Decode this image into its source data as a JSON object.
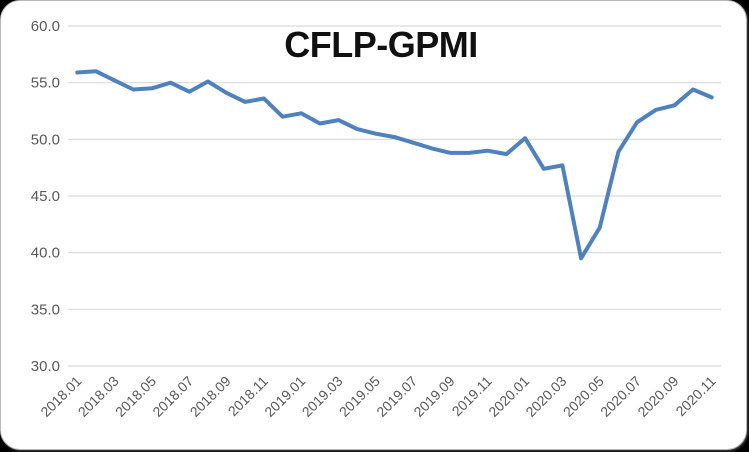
{
  "chart_data": {
    "type": "line",
    "title": "CFLP-GPMI",
    "xlabel": "",
    "ylabel": "",
    "ylim": [
      30.0,
      60.0
    ],
    "grid": "horizontal",
    "legend": "none",
    "y_ticks": [
      60.0,
      55.0,
      50.0,
      45.0,
      40.0,
      35.0,
      30.0
    ],
    "y_tick_labels": [
      "60.0",
      "55.0",
      "50.0",
      "45.0",
      "40.0",
      "35.0",
      "30.0"
    ],
    "x": [
      "2018.01",
      "2018.02",
      "2018.03",
      "2018.04",
      "2018.05",
      "2018.06",
      "2018.07",
      "2018.08",
      "2018.09",
      "2018.10",
      "2018.11",
      "2018.12",
      "2019.01",
      "2019.02",
      "2019.03",
      "2019.04",
      "2019.05",
      "2019.06",
      "2019.07",
      "2019.08",
      "2019.09",
      "2019.10",
      "2019.11",
      "2019.12",
      "2020.01",
      "2020.02",
      "2020.03",
      "2020.04",
      "2020.05",
      "2020.06",
      "2020.07",
      "2020.08",
      "2020.09",
      "2020.10",
      "2020.11"
    ],
    "x_tick_labels_shown": [
      "2018.01",
      "2018.03",
      "2018.05",
      "2018.07",
      "2018.09",
      "2018.11",
      "2019.01",
      "2019.03",
      "2019.05",
      "2019.07",
      "2019.09",
      "2019.11",
      "2020.01",
      "2020.03",
      "2020.05",
      "2020.07",
      "2020.09",
      "2020.11"
    ],
    "series": [
      {
        "name": "CFLP-GPMI",
        "values": [
          55.9,
          56.0,
          55.2,
          54.4,
          54.5,
          55.0,
          54.2,
          55.1,
          54.1,
          53.3,
          53.6,
          52.0,
          52.3,
          51.4,
          51.7,
          50.9,
          50.5,
          50.2,
          49.7,
          49.2,
          48.8,
          48.8,
          49.0,
          48.7,
          50.1,
          47.4,
          47.7,
          39.5,
          42.2,
          48.9,
          51.5,
          52.6,
          53.0,
          54.4,
          53.7
        ]
      }
    ],
    "colors": {
      "line": "#4F81BD",
      "grid": "#D9D9D9",
      "tick_label": "#595959",
      "title": "#111111",
      "card_background": "#FFFFFF",
      "card_border": "#B9B9B9",
      "page_background": "#000000"
    }
  }
}
